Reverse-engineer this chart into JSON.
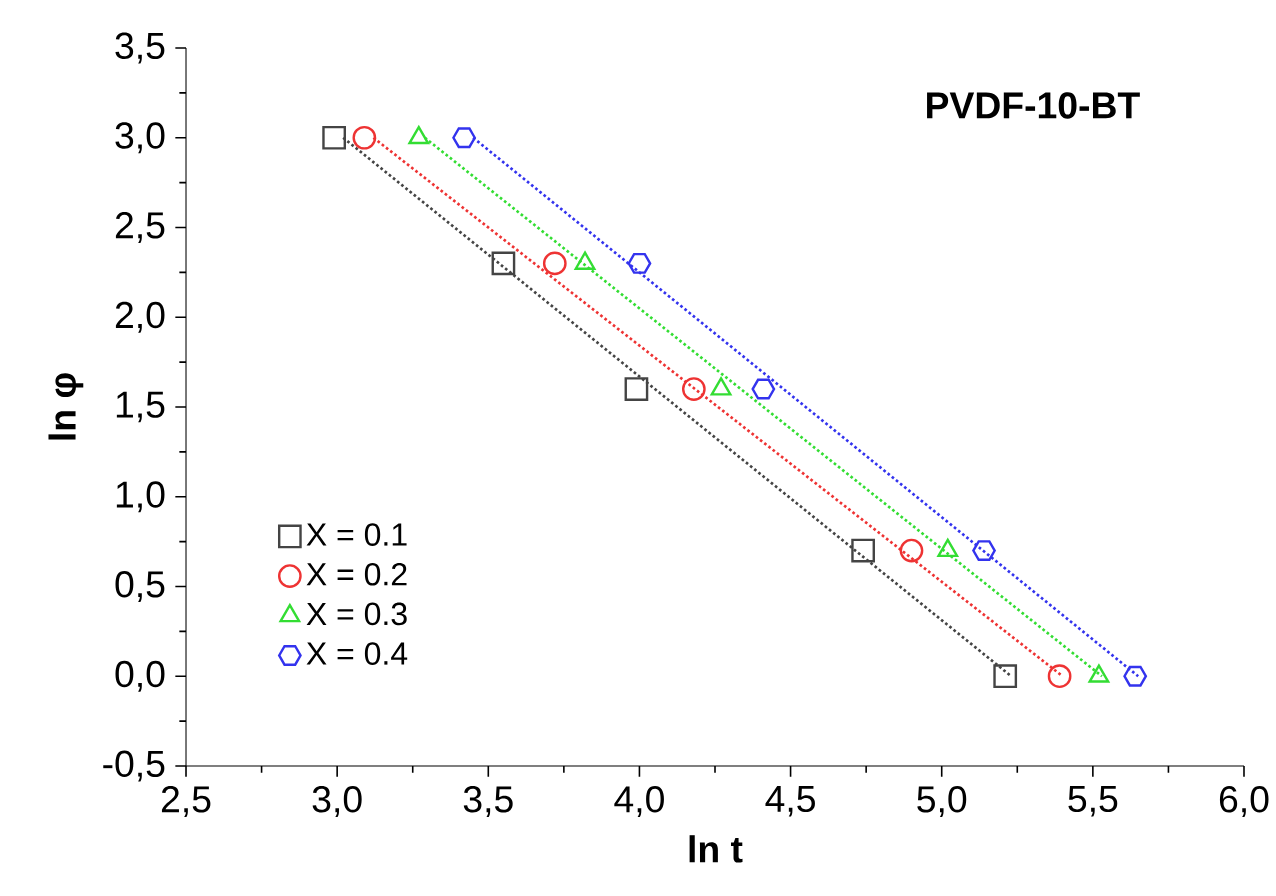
{
  "chart_data": {
    "type": "scatter",
    "title": "PVDF-10-BT",
    "xlabel": "ln t",
    "ylabel": "ln φ",
    "xlim": [
      2.5,
      6.0
    ],
    "ylim": [
      -0.5,
      3.5
    ],
    "xticks": [
      {
        "value": 2.5,
        "label": "2,5"
      },
      {
        "value": 3.0,
        "label": "3,0"
      },
      {
        "value": 3.5,
        "label": "3,5"
      },
      {
        "value": 4.0,
        "label": "4,0"
      },
      {
        "value": 4.5,
        "label": "4,5"
      },
      {
        "value": 5.0,
        "label": "5,0"
      },
      {
        "value": 5.5,
        "label": "5,5"
      },
      {
        "value": 6.0,
        "label": "6,0"
      }
    ],
    "yticks": [
      {
        "value": -0.5,
        "label": "-0,5"
      },
      {
        "value": 0.0,
        "label": "0,0"
      },
      {
        "value": 0.5,
        "label": "0,5"
      },
      {
        "value": 1.0,
        "label": "1,0"
      },
      {
        "value": 1.5,
        "label": "1,5"
      },
      {
        "value": 2.0,
        "label": "2,0"
      },
      {
        "value": 2.5,
        "label": "2,5"
      },
      {
        "value": 3.0,
        "label": "3,0"
      },
      {
        "value": 3.5,
        "label": "3,5"
      }
    ],
    "legend": "bottom left",
    "grid": false,
    "series": [
      {
        "name": "X = 0.1",
        "type": "scatter",
        "marker": "square",
        "color": "#444444",
        "x": [
          2.99,
          3.55,
          3.99,
          4.74,
          5.21
        ],
        "values": [
          3.0,
          2.3,
          1.6,
          0.7,
          0.0
        ]
      },
      {
        "name": "X = 0.2",
        "type": "scatter",
        "marker": "circle",
        "color": "#ee3333",
        "x": [
          3.09,
          3.72,
          4.18,
          4.9,
          5.39
        ],
        "values": [
          3.0,
          2.3,
          1.6,
          0.7,
          0.0
        ]
      },
      {
        "name": "X = 0.3",
        "type": "scatter",
        "marker": "triangle",
        "color": "#33dd33",
        "x": [
          3.27,
          3.82,
          4.27,
          5.02,
          5.52
        ],
        "values": [
          3.0,
          2.3,
          1.6,
          0.7,
          0.0
        ]
      },
      {
        "name": "X = 0.4",
        "type": "scatter",
        "color": "#3333ee",
        "x": [
          3.42,
          4.0,
          4.41,
          5.14,
          5.64
        ],
        "values": [
          3.0,
          2.3,
          1.6,
          0.7,
          0.0
        ]
      },
      {
        "type": "line",
        "line_style": "dotted",
        "color": "#444444",
        "x": [
          3.02,
          5.23
        ],
        "values": [
          3.0,
          0.0
        ]
      },
      {
        "type": "line",
        "line_style": "dotted",
        "color": "#ee3333",
        "x": [
          3.12,
          5.4
        ],
        "values": [
          3.0,
          0.0
        ]
      },
      {
        "type": "line",
        "line_style": "dotted",
        "color": "#33dd33",
        "x": [
          3.29,
          5.53
        ],
        "values": [
          3.0,
          0.0
        ]
      },
      {
        "type": "line",
        "line_style": "dotted",
        "color": "#3333ee",
        "x": [
          3.45,
          5.65
        ],
        "values": [
          3.0,
          0.0
        ]
      }
    ]
  }
}
